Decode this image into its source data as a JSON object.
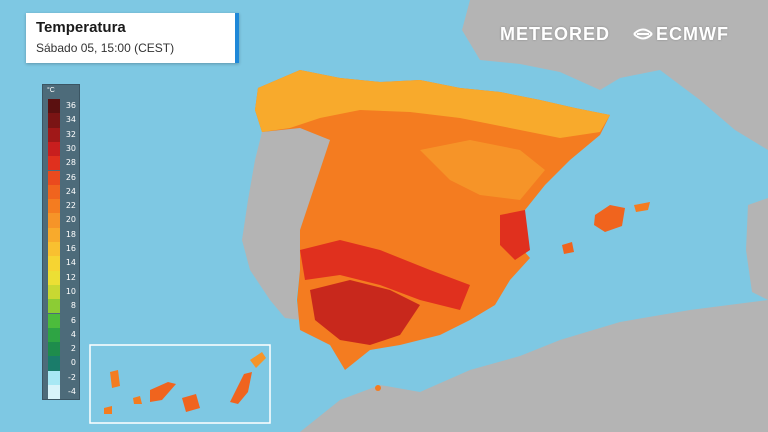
{
  "title": {
    "heading": "Temperatura",
    "subtitle": "Sábado 05, 15:00 (CEST)"
  },
  "brands": {
    "meteored": "METEORED",
    "ecmwf": "ECMWF"
  },
  "legend": {
    "unit": "°C",
    "stops": [
      {
        "label": "36",
        "color": "#5a1010"
      },
      {
        "label": "34",
        "color": "#7a1414"
      },
      {
        "label": "32",
        "color": "#a01818"
      },
      {
        "label": "30",
        "color": "#c81e1e"
      },
      {
        "label": "28",
        "color": "#e0301e"
      },
      {
        "label": "26",
        "color": "#ea4a1e"
      },
      {
        "label": "24",
        "color": "#f0641e"
      },
      {
        "label": "22",
        "color": "#f47c20"
      },
      {
        "label": "20",
        "color": "#f69428"
      },
      {
        "label": "18",
        "color": "#f8aa2c"
      },
      {
        "label": "16",
        "color": "#f9c030"
      },
      {
        "label": "14",
        "color": "#f6d432"
      },
      {
        "label": "12",
        "color": "#ecdf34"
      },
      {
        "label": "10",
        "color": "#c8d832"
      },
      {
        "label": "8",
        "color": "#8ccc34"
      },
      {
        "label": "6",
        "color": "#4cbc3c"
      },
      {
        "label": "4",
        "color": "#2ea444"
      },
      {
        "label": "2",
        "color": "#1e8c4c"
      },
      {
        "label": "0",
        "color": "#1a7c6a"
      },
      {
        "label": "-2",
        "color": "#a8e8f4"
      },
      {
        "label": "-4",
        "color": "#d8f4fa"
      }
    ]
  },
  "colors": {
    "sea": "#7ec8e3",
    "foreign_land": "#b4b4b4",
    "hot": "#c8281c",
    "warm": "#f0641e",
    "mild": "#f6a22c",
    "cool": "#f9c030"
  }
}
